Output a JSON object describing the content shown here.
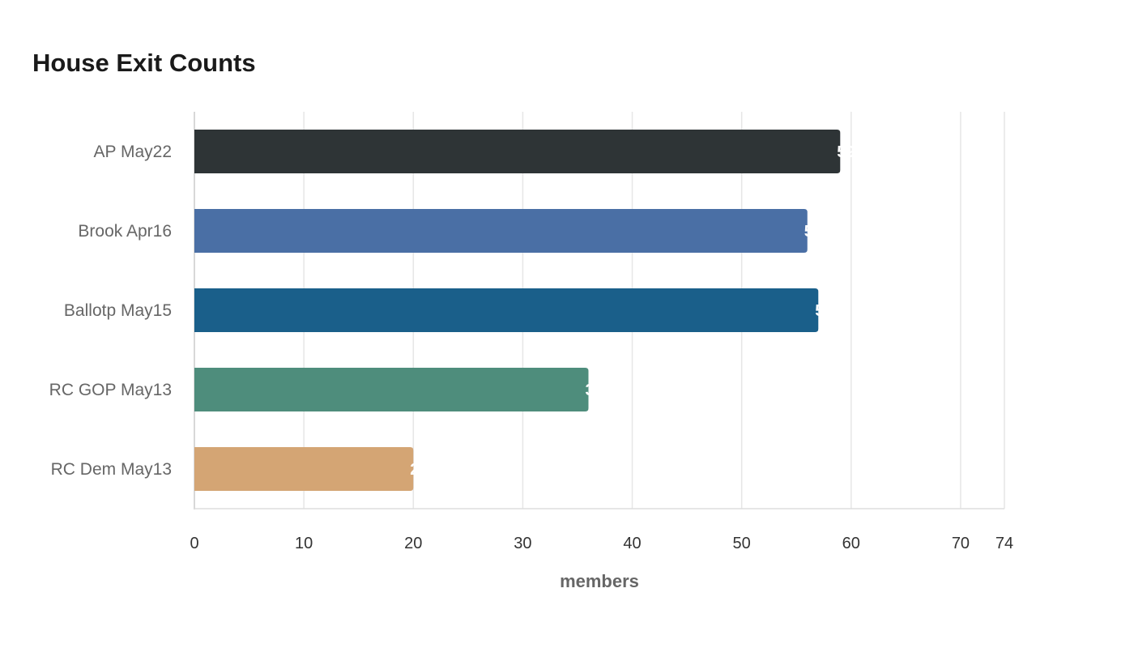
{
  "chart_data": {
    "type": "bar",
    "orientation": "horizontal",
    "title": "House Exit Counts",
    "xlabel": "members",
    "ylabel": "",
    "categories": [
      "AP May22",
      "Brook Apr16",
      "Ballotp May15",
      "RC GOP May13",
      "RC Dem May13"
    ],
    "values": [
      59,
      56,
      57,
      36,
      20
    ],
    "colors": [
      "#2e3436",
      "#4a6fa5",
      "#1a5f8a",
      "#4e8d7c",
      "#d4a574"
    ],
    "xlim": [
      0,
      74
    ],
    "xticks": [
      0,
      10,
      20,
      30,
      40,
      50,
      60,
      70,
      74
    ],
    "grid": true,
    "legend": "none"
  }
}
